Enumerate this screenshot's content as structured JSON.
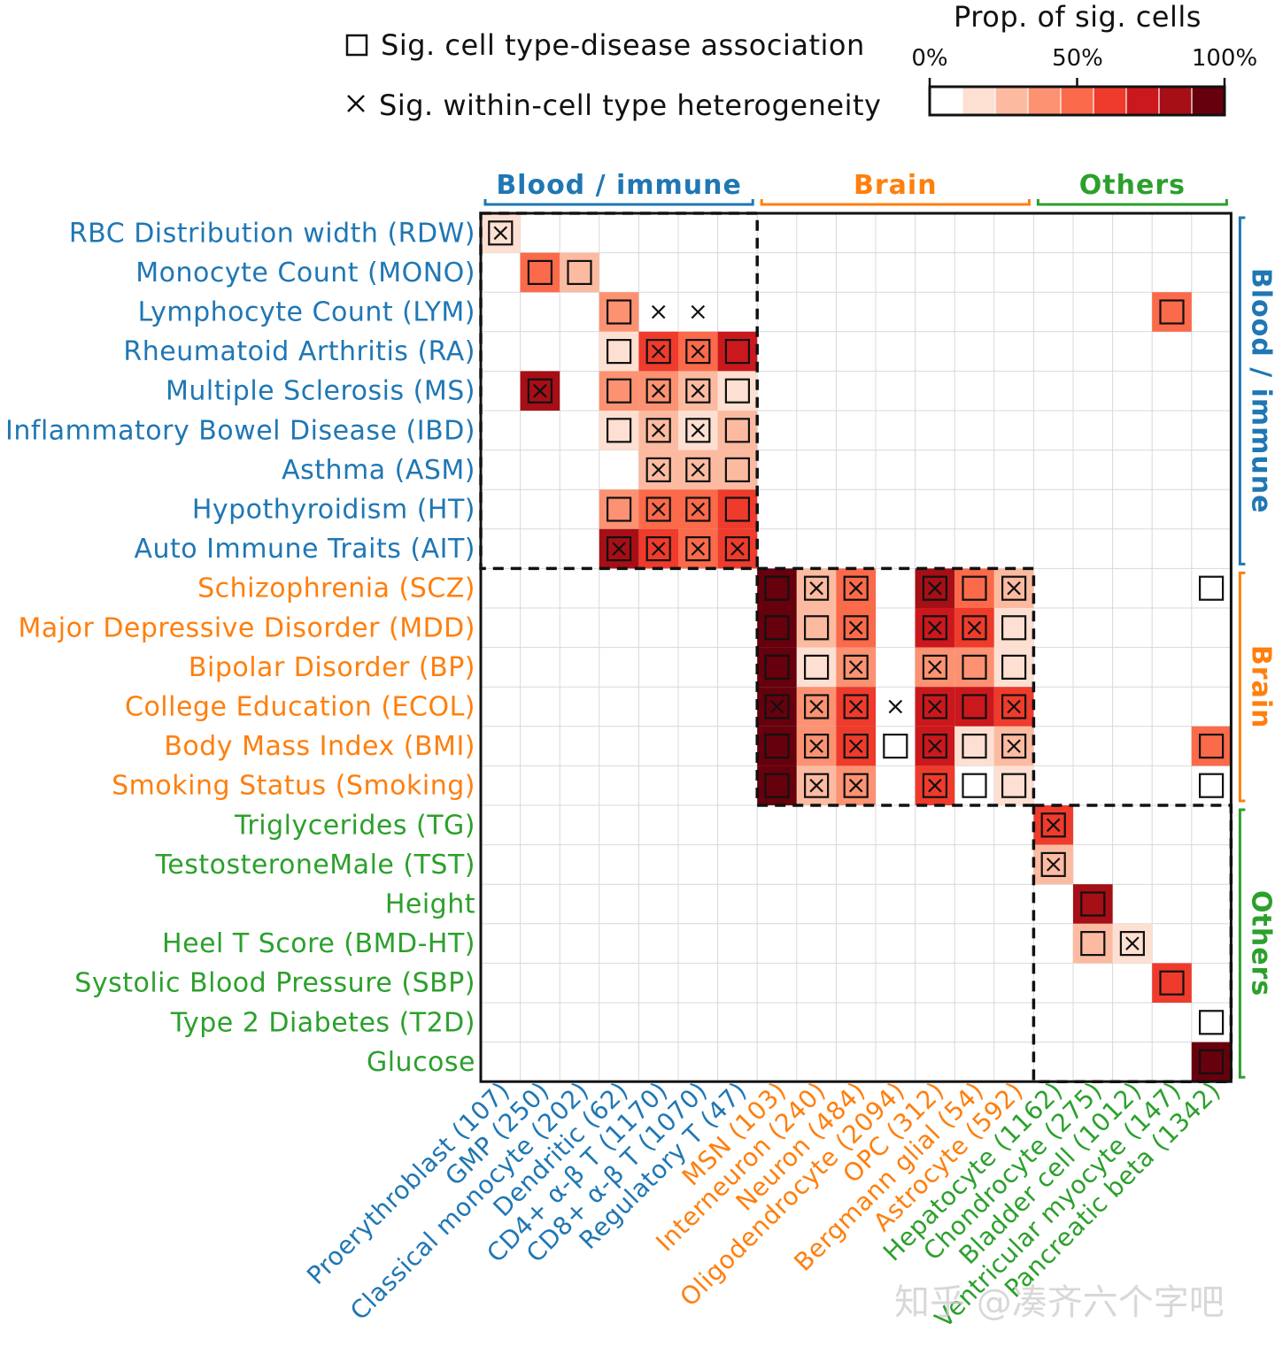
{
  "chart_data": {
    "type": "heatmap",
    "legend": {
      "square_label": "Sig. cell type-disease association",
      "cross_label": "Sig. within-cell type heterogeneity",
      "colorbar_title": "Prop. of sig. cells",
      "colorbar_ticks": [
        "0%",
        "50%",
        "100%"
      ],
      "colorbar_range": [
        0,
        100
      ],
      "colorbar_colors": [
        "#ffffff",
        "#fde0d2",
        "#fcbba1",
        "#fc9272",
        "#fb6a4a",
        "#ef3b2c",
        "#cb181d",
        "#a50f15",
        "#67000d"
      ]
    },
    "colors": {
      "blood": "#1f77b4",
      "brain": "#ff7f0e",
      "others": "#2ca02c"
    },
    "groups": [
      {
        "name": "Blood / immune",
        "color": "#1f77b4"
      },
      {
        "name": "Brain",
        "color": "#ff7f0e"
      },
      {
        "name": "Others",
        "color": "#2ca02c"
      }
    ],
    "row_groups": [
      "Blood / immune",
      "Brain",
      "Others"
    ],
    "rows": [
      {
        "label": "RBC Distribution width (RDW)",
        "group": 0
      },
      {
        "label": "Monocyte Count (MONO)",
        "group": 0
      },
      {
        "label": "Lymphocyte Count (LYM)",
        "group": 0
      },
      {
        "label": "Rheumatoid Arthritis (RA)",
        "group": 0
      },
      {
        "label": "Multiple Sclerosis (MS)",
        "group": 0
      },
      {
        "label": "Inflammatory Bowel Disease (IBD)",
        "group": 0
      },
      {
        "label": "Asthma (ASM)",
        "group": 0
      },
      {
        "label": "Hypothyroidism (HT)",
        "group": 0
      },
      {
        "label": "Auto Immune Traits (AIT)",
        "group": 0
      },
      {
        "label": "Schizophrenia (SCZ)",
        "group": 1
      },
      {
        "label": "Major Depressive Disorder (MDD)",
        "group": 1
      },
      {
        "label": "Bipolar Disorder (BP)",
        "group": 1
      },
      {
        "label": "College Education (ECOL)",
        "group": 1
      },
      {
        "label": "Body Mass Index (BMI)",
        "group": 1
      },
      {
        "label": "Smoking Status (Smoking)",
        "group": 1
      },
      {
        "label": "Triglycerides (TG)",
        "group": 2
      },
      {
        "label": "TestosteroneMale (TST)",
        "group": 2
      },
      {
        "label": "Height",
        "group": 2
      },
      {
        "label": "Heel T Score (BMD-HT)",
        "group": 2
      },
      {
        "label": "Systolic Blood Pressure (SBP)",
        "group": 2
      },
      {
        "label": "Type 2 Diabetes (T2D)",
        "group": 2
      },
      {
        "label": "Glucose",
        "group": 2
      }
    ],
    "columns": [
      {
        "label": "Proerythroblast (107)",
        "group": 0
      },
      {
        "label": "GMP (250)",
        "group": 0
      },
      {
        "label": "Classical monocyte (202)",
        "group": 0
      },
      {
        "label": "Dendritic (62)",
        "group": 0
      },
      {
        "label": "CD4+ α-β T (1170)",
        "group": 0
      },
      {
        "label": "CD8+ α-β T (1070)",
        "group": 0
      },
      {
        "label": "Regulatory T (47)",
        "group": 0
      },
      {
        "label": "MSN (103)",
        "group": 1
      },
      {
        "label": "Interneuron (240)",
        "group": 1
      },
      {
        "label": "Neuron (484)",
        "group": 1
      },
      {
        "label": "Oligodendrocyte (2094)",
        "group": 1
      },
      {
        "label": "OPC (312)",
        "group": 1
      },
      {
        "label": "Bergmann glial (54)",
        "group": 1
      },
      {
        "label": "Astrocyte (592)",
        "group": 1
      },
      {
        "label": "Hepatocyte (1162)",
        "group": 2
      },
      {
        "label": "Chondrocyte (275)",
        "group": 2
      },
      {
        "label": "Bladder cell (1012)",
        "group": 2
      },
      {
        "label": "Ventricular myocyte (147)",
        "group": 2
      },
      {
        "label": "Pancreatic beta (1342)",
        "group": 2
      }
    ],
    "cells": [
      {
        "row": 0,
        "col": 0,
        "prop": 10,
        "assoc": true,
        "hetero": true
      },
      {
        "row": 1,
        "col": 1,
        "prop": 55,
        "assoc": true,
        "hetero": false
      },
      {
        "row": 1,
        "col": 2,
        "prop": 22,
        "assoc": true,
        "hetero": false
      },
      {
        "row": 2,
        "col": 3,
        "prop": 40,
        "assoc": true,
        "hetero": false
      },
      {
        "row": 2,
        "col": 4,
        "prop": 0,
        "assoc": false,
        "hetero": true
      },
      {
        "row": 2,
        "col": 5,
        "prop": 0,
        "assoc": false,
        "hetero": true
      },
      {
        "row": 2,
        "col": 17,
        "prop": 55,
        "assoc": true,
        "hetero": false
      },
      {
        "row": 3,
        "col": 3,
        "prop": 15,
        "assoc": true,
        "hetero": false
      },
      {
        "row": 3,
        "col": 4,
        "prop": 58,
        "assoc": true,
        "hetero": true
      },
      {
        "row": 3,
        "col": 5,
        "prop": 55,
        "assoc": true,
        "hetero": true
      },
      {
        "row": 3,
        "col": 6,
        "prop": 72,
        "assoc": true,
        "hetero": false
      },
      {
        "row": 4,
        "col": 1,
        "prop": 82,
        "assoc": true,
        "hetero": true
      },
      {
        "row": 4,
        "col": 3,
        "prop": 40,
        "assoc": true,
        "hetero": false
      },
      {
        "row": 4,
        "col": 4,
        "prop": 35,
        "assoc": true,
        "hetero": true
      },
      {
        "row": 4,
        "col": 5,
        "prop": 30,
        "assoc": true,
        "hetero": true
      },
      {
        "row": 4,
        "col": 6,
        "prop": 12,
        "assoc": true,
        "hetero": false
      },
      {
        "row": 5,
        "col": 3,
        "prop": 12,
        "assoc": true,
        "hetero": false
      },
      {
        "row": 5,
        "col": 4,
        "prop": 22,
        "assoc": true,
        "hetero": true
      },
      {
        "row": 5,
        "col": 5,
        "prop": 10,
        "assoc": true,
        "hetero": true
      },
      {
        "row": 5,
        "col": 6,
        "prop": 30,
        "assoc": true,
        "hetero": false
      },
      {
        "row": 6,
        "col": 4,
        "prop": 28,
        "assoc": true,
        "hetero": true
      },
      {
        "row": 6,
        "col": 5,
        "prop": 22,
        "assoc": true,
        "hetero": true
      },
      {
        "row": 6,
        "col": 6,
        "prop": 30,
        "assoc": true,
        "hetero": false
      },
      {
        "row": 7,
        "col": 3,
        "prop": 42,
        "assoc": true,
        "hetero": false
      },
      {
        "row": 7,
        "col": 4,
        "prop": 55,
        "assoc": true,
        "hetero": true
      },
      {
        "row": 7,
        "col": 5,
        "prop": 50,
        "assoc": true,
        "hetero": true
      },
      {
        "row": 7,
        "col": 6,
        "prop": 65,
        "assoc": true,
        "hetero": false
      },
      {
        "row": 8,
        "col": 3,
        "prop": 85,
        "assoc": true,
        "hetero": true
      },
      {
        "row": 8,
        "col": 4,
        "prop": 58,
        "assoc": true,
        "hetero": true
      },
      {
        "row": 8,
        "col": 5,
        "prop": 52,
        "assoc": true,
        "hetero": true
      },
      {
        "row": 8,
        "col": 6,
        "prop": 60,
        "assoc": true,
        "hetero": true
      },
      {
        "row": 9,
        "col": 7,
        "prop": 98,
        "assoc": true,
        "hetero": false
      },
      {
        "row": 9,
        "col": 8,
        "prop": 22,
        "assoc": true,
        "hetero": true
      },
      {
        "row": 9,
        "col": 9,
        "prop": 45,
        "assoc": true,
        "hetero": true
      },
      {
        "row": 9,
        "col": 11,
        "prop": 88,
        "assoc": true,
        "hetero": true
      },
      {
        "row": 9,
        "col": 12,
        "prop": 45,
        "assoc": true,
        "hetero": false
      },
      {
        "row": 9,
        "col": 13,
        "prop": 22,
        "assoc": true,
        "hetero": true
      },
      {
        "row": 9,
        "col": 18,
        "prop": 0,
        "assoc": true,
        "hetero": false
      },
      {
        "row": 10,
        "col": 7,
        "prop": 98,
        "assoc": true,
        "hetero": false
      },
      {
        "row": 10,
        "col": 8,
        "prop": 22,
        "assoc": true,
        "hetero": false
      },
      {
        "row": 10,
        "col": 9,
        "prop": 45,
        "assoc": true,
        "hetero": true
      },
      {
        "row": 10,
        "col": 11,
        "prop": 75,
        "assoc": true,
        "hetero": true
      },
      {
        "row": 10,
        "col": 12,
        "prop": 68,
        "assoc": true,
        "hetero": true
      },
      {
        "row": 10,
        "col": 13,
        "prop": 12,
        "assoc": true,
        "hetero": false
      },
      {
        "row": 11,
        "col": 7,
        "prop": 98,
        "assoc": true,
        "hetero": false
      },
      {
        "row": 11,
        "col": 8,
        "prop": 10,
        "assoc": true,
        "hetero": false
      },
      {
        "row": 11,
        "col": 9,
        "prop": 40,
        "assoc": true,
        "hetero": true
      },
      {
        "row": 11,
        "col": 11,
        "prop": 35,
        "assoc": true,
        "hetero": true
      },
      {
        "row": 11,
        "col": 12,
        "prop": 38,
        "assoc": true,
        "hetero": false
      },
      {
        "row": 11,
        "col": 13,
        "prop": 15,
        "assoc": true,
        "hetero": false
      },
      {
        "row": 12,
        "col": 7,
        "prop": 95,
        "assoc": true,
        "hetero": true
      },
      {
        "row": 12,
        "col": 8,
        "prop": 35,
        "assoc": true,
        "hetero": true
      },
      {
        "row": 12,
        "col": 9,
        "prop": 62,
        "assoc": true,
        "hetero": true
      },
      {
        "row": 12,
        "col": 10,
        "prop": 0,
        "assoc": false,
        "hetero": true
      },
      {
        "row": 12,
        "col": 11,
        "prop": 72,
        "assoc": true,
        "hetero": true
      },
      {
        "row": 12,
        "col": 12,
        "prop": 75,
        "assoc": true,
        "hetero": false
      },
      {
        "row": 12,
        "col": 13,
        "prop": 60,
        "assoc": true,
        "hetero": true
      },
      {
        "row": 13,
        "col": 7,
        "prop": 98,
        "assoc": true,
        "hetero": false
      },
      {
        "row": 13,
        "col": 8,
        "prop": 35,
        "assoc": true,
        "hetero": true
      },
      {
        "row": 13,
        "col": 9,
        "prop": 60,
        "assoc": true,
        "hetero": true
      },
      {
        "row": 13,
        "col": 10,
        "prop": 0,
        "assoc": true,
        "hetero": false
      },
      {
        "row": 13,
        "col": 11,
        "prop": 72,
        "assoc": true,
        "hetero": true
      },
      {
        "row": 13,
        "col": 12,
        "prop": 12,
        "assoc": true,
        "hetero": false
      },
      {
        "row": 13,
        "col": 13,
        "prop": 25,
        "assoc": true,
        "hetero": true
      },
      {
        "row": 13,
        "col": 18,
        "prop": 55,
        "assoc": true,
        "hetero": false
      },
      {
        "row": 14,
        "col": 7,
        "prop": 98,
        "assoc": true,
        "hetero": false
      },
      {
        "row": 14,
        "col": 8,
        "prop": 22,
        "assoc": true,
        "hetero": true
      },
      {
        "row": 14,
        "col": 9,
        "prop": 42,
        "assoc": true,
        "hetero": true
      },
      {
        "row": 14,
        "col": 11,
        "prop": 68,
        "assoc": true,
        "hetero": true
      },
      {
        "row": 14,
        "col": 12,
        "prop": 0,
        "assoc": true,
        "hetero": false
      },
      {
        "row": 14,
        "col": 13,
        "prop": 15,
        "assoc": true,
        "hetero": false
      },
      {
        "row": 14,
        "col": 18,
        "prop": 0,
        "assoc": true,
        "hetero": false
      },
      {
        "row": 15,
        "col": 14,
        "prop": 62,
        "assoc": true,
        "hetero": true
      },
      {
        "row": 16,
        "col": 14,
        "prop": 30,
        "assoc": true,
        "hetero": true
      },
      {
        "row": 17,
        "col": 15,
        "prop": 85,
        "assoc": true,
        "hetero": false
      },
      {
        "row": 18,
        "col": 15,
        "prop": 30,
        "assoc": true,
        "hetero": false
      },
      {
        "row": 18,
        "col": 16,
        "prop": 15,
        "assoc": true,
        "hetero": true
      },
      {
        "row": 19,
        "col": 17,
        "prop": 65,
        "assoc": true,
        "hetero": false
      },
      {
        "row": 20,
        "col": 18,
        "prop": 0,
        "assoc": true,
        "hetero": false
      },
      {
        "row": 21,
        "col": 18,
        "prop": 98,
        "assoc": true,
        "hetero": false
      }
    ],
    "blocks": [
      {
        "rows": [
          0,
          8
        ],
        "cols": [
          0,
          6
        ]
      },
      {
        "rows": [
          9,
          14
        ],
        "cols": [
          7,
          13
        ]
      },
      {
        "rows": [
          15,
          21
        ],
        "cols": [
          14,
          18
        ]
      }
    ]
  },
  "watermark": "知乎 @凑齐六个字吧"
}
